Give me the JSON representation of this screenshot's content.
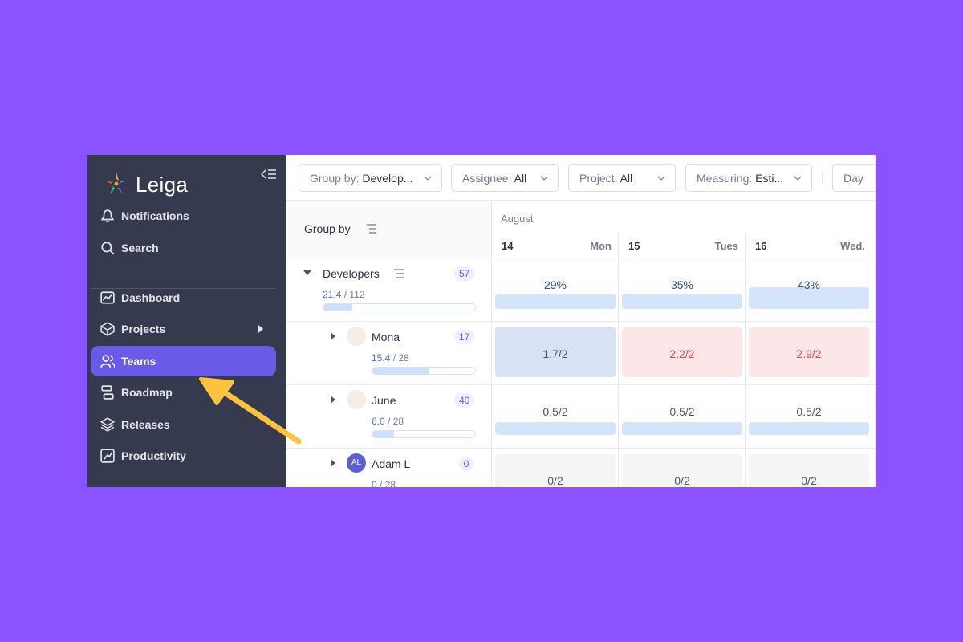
{
  "sidebar": {
    "brand": "Leiga",
    "nav": [
      "Notifications",
      "Search",
      "Dashboard",
      "Projects",
      "Teams",
      "Roadmap",
      "Releases",
      "Productivity"
    ],
    "active": 4
  },
  "filters": [
    {
      "label": "Group by:",
      "value": "Develop..."
    },
    {
      "label": "Assignee:",
      "value": "All"
    },
    {
      "label": "Project:",
      "value": "All"
    },
    {
      "label": "Measuring:",
      "value": "Esti..."
    },
    {
      "label": "Day"
    }
  ],
  "group_by": "Group by",
  "month": "August",
  "days": [
    {
      "date": 14,
      "weekday": "Mon"
    },
    {
      "date": 15,
      "weekday": "Tues"
    },
    {
      "date": 16,
      "weekday": "Wed."
    }
  ],
  "rows": [
    {
      "name": "Developers",
      "count": 57,
      "used": "21.4",
      "total": "/ 112",
      "cells": [
        "29%",
        "35%",
        "43%"
      ]
    },
    {
      "name": "Mona",
      "count": 17,
      "used": "15.4",
      "total": "/ 28",
      "cells": [
        "1.7/2",
        "2.2/2",
        "2.9/2"
      ]
    },
    {
      "name": "June",
      "count": 40,
      "used": "6.0",
      "total": "/ 28",
      "cells": [
        "0.5/2",
        "0.5/2",
        "0.5/2"
      ]
    },
    {
      "name": "Adam L",
      "initials": "AL",
      "count": 0,
      "used": "0",
      "total": "/ 28",
      "cells": [
        "0/2",
        "0/2",
        "0/2"
      ]
    }
  ]
}
